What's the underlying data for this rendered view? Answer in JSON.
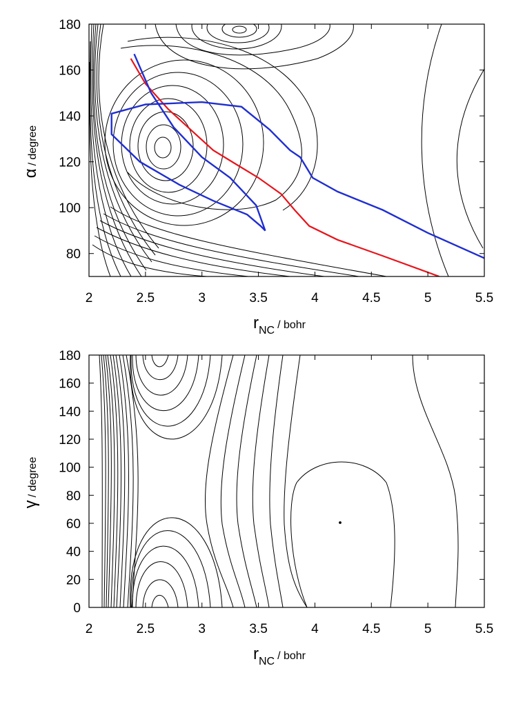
{
  "chart_data": [
    {
      "type": "contour",
      "xlabel": {
        "symbol": "r",
        "subscript": "NC",
        "unit": "/ bohr"
      },
      "ylabel": {
        "symbol": "α",
        "unit": "/ degree"
      },
      "xlim": [
        2,
        5.5
      ],
      "ylim": [
        70,
        180
      ],
      "xticks": [
        "2",
        "2.5",
        "3",
        "3.5",
        "4",
        "4.5",
        "5",
        "5.5"
      ],
      "yticks": [
        "80",
        "100",
        "120",
        "140",
        "160",
        "180"
      ],
      "colors": {
        "contours": "#000000"
      },
      "series": [
        {
          "color": "#e8141b",
          "x": [
            2.37,
            2.5,
            2.7,
            2.9,
            3.1,
            3.3,
            3.5,
            3.7,
            3.82,
            3.95,
            4.2,
            4.6,
            5.1
          ],
          "y": [
            165,
            154,
            143,
            134,
            125,
            119,
            113,
            106,
            99,
            92,
            86,
            79,
            70
          ]
        },
        {
          "color": "#1f2ed1",
          "x": [
            2.4,
            2.55,
            2.75,
            3.0,
            3.25,
            3.48,
            3.56,
            3.52,
            3.4,
            3.1,
            2.8,
            2.45,
            2.2,
            2.2,
            2.5,
            3.0,
            3.35,
            3.6,
            3.78,
            3.87,
            3.98,
            4.2,
            4.6,
            5.0,
            5.5
          ],
          "y": [
            167,
            150,
            135,
            122,
            113,
            101,
            90,
            92,
            97,
            103,
            110,
            120,
            132,
            141,
            145,
            146,
            144,
            134,
            125,
            122,
            113,
            107,
            99,
            89,
            78
          ]
        }
      ]
    },
    {
      "type": "contour",
      "xlabel": {
        "symbol": "r",
        "subscript": "NC",
        "unit": "/ bohr"
      },
      "ylabel": {
        "symbol": "γ",
        "unit": "/ degree"
      },
      "xlim": [
        2,
        5.5
      ],
      "ylim": [
        0,
        180
      ],
      "xticks": [
        "2",
        "2.5",
        "3",
        "3.5",
        "4",
        "4.5",
        "5",
        "5.5"
      ],
      "yticks": [
        "0",
        "20",
        "40",
        "60",
        "80",
        "100",
        "120",
        "140",
        "160",
        "180"
      ],
      "colors": {
        "contours": "#000000"
      }
    }
  ]
}
